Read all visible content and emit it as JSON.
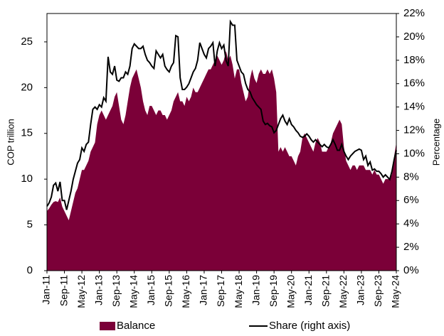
{
  "chart_data": {
    "type": "area_line",
    "y_label": "COP trillion",
    "y2_label": "Percentage",
    "categories": [
      "Jan-11",
      null,
      null,
      null,
      null,
      null,
      null,
      null,
      "Sep-11",
      null,
      null,
      null,
      null,
      null,
      null,
      null,
      "May-12",
      null,
      null,
      null,
      null,
      null,
      null,
      null,
      "Jan-13",
      null,
      null,
      null,
      null,
      null,
      null,
      null,
      "Sep-13",
      null,
      null,
      null,
      null,
      null,
      null,
      null,
      "May-14",
      null,
      null,
      null,
      null,
      null,
      null,
      null,
      "Jan-15",
      null,
      null,
      null,
      null,
      null,
      null,
      null,
      "Sep-15",
      null,
      null,
      null,
      null,
      null,
      null,
      null,
      "May-16",
      null,
      null,
      null,
      null,
      null,
      null,
      null,
      "Jan-17",
      null,
      null,
      null,
      null,
      null,
      null,
      null,
      "Sep-17",
      null,
      null,
      null,
      null,
      null,
      null,
      null,
      "May-18",
      null,
      null,
      null,
      null,
      null,
      null,
      null,
      "Jan-19",
      null,
      null,
      null,
      null,
      null,
      null,
      null,
      "Sep-19",
      null,
      null,
      null,
      null,
      null,
      null,
      null,
      "May-20",
      null,
      null,
      null,
      null,
      null,
      null,
      null,
      "Jan-21",
      null,
      null,
      null,
      null,
      null,
      null,
      null,
      "Sep-21",
      null,
      null,
      null,
      null,
      null,
      null,
      null,
      "May-22",
      null,
      null,
      null,
      null,
      null,
      null,
      null,
      "Jan-23",
      null,
      null,
      null,
      null,
      null,
      null,
      null,
      "Sep-23",
      null,
      null,
      null,
      null,
      null,
      null,
      null,
      "May-24"
    ],
    "series": [
      {
        "name": "Balance",
        "kind": "area",
        "color": "#7b0038",
        "axis": "y",
        "values": [
          6.5,
          6.8,
          7.2,
          7.5,
          7.6,
          7.5,
          8,
          7,
          6.5,
          6,
          5.5,
          6.5,
          7.5,
          8.5,
          9,
          10,
          11,
          11,
          11.5,
          12,
          13,
          13.5,
          14,
          16,
          17,
          17.5,
          17,
          16.5,
          17,
          17.5,
          18,
          19,
          19.5,
          18,
          16.5,
          16,
          17,
          18.5,
          20,
          21,
          21.5,
          22,
          21,
          20,
          18.5,
          17.5,
          17,
          18,
          18,
          17.5,
          17,
          17.5,
          17.5,
          17,
          17,
          16.5,
          17,
          17.5,
          18.5,
          19,
          19.5,
          18.5,
          18.5,
          18,
          19,
          18.5,
          19,
          20,
          19.5,
          19.5,
          20,
          20.5,
          21,
          21.5,
          22,
          22,
          22.5,
          23,
          23.5,
          23,
          22.5,
          23,
          24,
          23,
          23.5,
          22.5,
          21,
          22,
          22,
          20.5,
          19.5,
          18.5,
          19,
          21,
          22,
          21,
          20.5,
          21.5,
          22,
          21.5,
          21.5,
          22,
          21.5,
          22,
          21,
          19.5,
          13,
          13.5,
          13,
          13.5,
          13,
          12.5,
          12.5,
          12,
          11.5,
          12.5,
          13,
          14.5,
          15,
          14.5,
          14,
          13.5,
          13,
          14,
          14.5,
          14,
          13,
          13,
          13,
          13.5,
          14,
          15,
          15.5,
          16,
          16.5,
          16,
          13.5,
          12,
          11.5,
          11,
          11.5,
          11.5,
          11,
          11.5,
          11.5,
          11.5,
          11,
          11,
          11,
          10.5,
          11,
          10.5,
          10.5,
          10,
          9.5,
          10,
          10,
          10,
          10.5,
          12.5,
          14
        ]
      },
      {
        "name": "Share (right axis)",
        "kind": "line",
        "color": "#000000",
        "axis": "y2",
        "values": [
          5.5,
          5.8,
          6.3,
          7.3,
          7.5,
          6.8,
          7.6,
          6,
          6,
          5.2,
          6,
          6.8,
          7.8,
          8.5,
          9.2,
          9.5,
          10.5,
          10.2,
          10.8,
          11,
          12.5,
          13.8,
          14,
          13.8,
          14.2,
          14,
          14.8,
          14.5,
          18.3,
          17,
          16.8,
          17.5,
          16.3,
          16.2,
          16.5,
          16.5,
          17,
          16.8,
          17.5,
          19,
          19.4,
          19.2,
          19,
          19,
          19.2,
          18.5,
          18,
          17.8,
          17.5,
          17.3,
          18.8,
          18.5,
          18.2,
          18.5,
          17.5,
          17.2,
          17,
          17.5,
          17.8,
          20.1,
          20,
          16.5,
          15.5,
          15.5,
          15.7,
          16,
          16.5,
          17,
          17.3,
          18,
          19.5,
          19,
          18.5,
          18.2,
          19,
          19.2,
          19.5,
          17.5,
          18.8,
          19.5,
          19,
          19.3,
          18,
          17.5,
          21.3,
          21,
          21,
          18,
          17.5,
          17,
          16.8,
          16,
          15.5,
          15.3,
          14.8,
          14.5,
          14.2,
          14,
          13.8,
          12.8,
          12.5,
          12.6,
          12.4,
          12.3,
          11.8,
          12,
          12.5,
          13,
          13.3,
          12.8,
          12.5,
          13,
          12.5,
          12.3,
          12,
          11.8,
          11.5,
          11.4,
          11.5,
          11.7,
          11.5,
          11.2,
          11,
          11.2,
          11,
          10.8,
          10.6,
          10.8,
          10.6,
          10.5,
          10.8,
          11.2,
          10.8,
          10.3,
          10.3,
          10.8,
          10.2,
          9.8,
          9.5,
          9.8,
          10,
          10.2,
          10.3,
          10.4,
          10.3,
          9.5,
          9.8,
          9,
          9.3,
          8.6,
          8.7,
          8.5,
          8.5,
          8.3,
          8,
          8.2,
          8,
          7.8,
          8.5,
          9.5,
          10.3
        ]
      }
    ],
    "ylim": [
      0,
      28.1
    ],
    "yticks": [
      0,
      5,
      10,
      15,
      20,
      25
    ],
    "y2lim": [
      0,
      22
    ],
    "y2ticks": [
      {
        "value": 0,
        "label": "0%"
      },
      {
        "value": 2,
        "label": "2%"
      },
      {
        "value": 4,
        "label": "4%"
      },
      {
        "value": 6,
        "label": "6%"
      },
      {
        "value": 8,
        "label": "8%"
      },
      {
        "value": 10,
        "label": "10%"
      },
      {
        "value": 12,
        "label": "12%"
      },
      {
        "value": 14,
        "label": "14%"
      },
      {
        "value": 16,
        "label": "16%"
      },
      {
        "value": 18,
        "label": "18%"
      },
      {
        "value": 20,
        "label": "20%"
      },
      {
        "value": 22,
        "label": "22%"
      }
    ],
    "grid": false,
    "legend": "bottom"
  }
}
